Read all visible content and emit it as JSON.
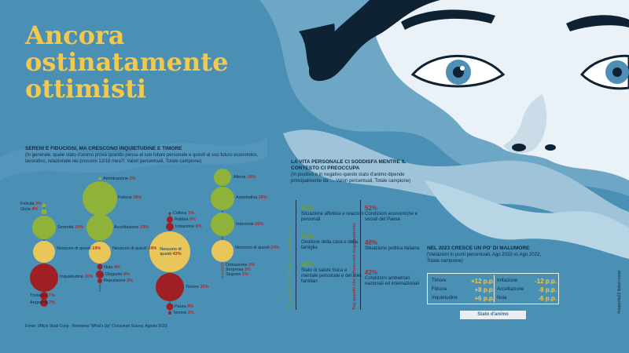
{
  "title": "Ancora ostinatamente ottimisti",
  "section1": {
    "heading": "SERENI E FIDUCIOSI, MA CRESCONO INQUIETUDINE E TIMORE",
    "subheading": "(In generale, quale stato d'animo prova quando pensa al suo futuro personale e quindi al suo futuro economico, lavorativo, relazionale nei prossimi 12/18 mesi?. Valori percentuali, Totale campione)",
    "bubbles": [
      {
        "label": "Felicità",
        "value": "3%"
      },
      {
        "label": "Gioia",
        "value": "4%"
      },
      {
        "label": "Serenità",
        "value": "20%"
      },
      {
        "label": "Nessuno di questi",
        "value": "19%"
      },
      {
        "label": "Inquietudine",
        "value": "30%"
      },
      {
        "label": "Tristezza",
        "value": "7%"
      },
      {
        "label": "Angoscia",
        "value": "7%"
      },
      {
        "label": "Ammirazione",
        "value": "2%"
      },
      {
        "label": "Fiducia",
        "value": "36%"
      },
      {
        "label": "Accettazione",
        "value": "23%"
      },
      {
        "label": "Nessuno di questi",
        "value": "24%"
      },
      {
        "label": "Noia",
        "value": "4%"
      },
      {
        "label": "Disgusto",
        "value": "8%"
      },
      {
        "label": "Repulsione",
        "value": "3%"
      },
      {
        "label": "Collera",
        "value": "1%"
      },
      {
        "label": "Rabbia",
        "value": "6%"
      },
      {
        "label": "Irritazione",
        "value": "8%"
      },
      {
        "label": "Nessuno di questi",
        "value": "43%"
      },
      {
        "label": "Timore",
        "value": "32%"
      },
      {
        "label": "Paura",
        "value": "8%"
      },
      {
        "label": "Terrore",
        "value": "2%"
      },
      {
        "label": "Allerta",
        "value": "16%"
      },
      {
        "label": "Aspettativa",
        "value": "28%"
      },
      {
        "label": "Interesse",
        "value": "26%"
      },
      {
        "label": "Nessuno di questi",
        "value": "24%"
      },
      {
        "label": "Distrazione",
        "value": "3%"
      },
      {
        "label": "Sorpresa",
        "value": "3%"
      },
      {
        "label": "Stupore",
        "value": "1%"
      }
    ],
    "source": "Fonte: Ufficio Studi Coop - Nomisma \"What's Up\" Consumer Survey, Agosto 2023"
  },
  "section2": {
    "heading": "LA VITA PERSONALE CI SODDISFA MENTRE IL CONTESTO CI PREOCCUPA",
    "subheading": "(In positivo o in negativo questo stato d'animo dipende principalmente da .... Valori percentuali, Totale campione)",
    "left_vertical_label": "Top aspetti che influiscono positivamente",
    "right_vertical_label": "Top aspetti che influiscono negativamente",
    "positive": [
      {
        "pct": "51%",
        "text": "Situazione affettiva e relazioni personali"
      },
      {
        "pct": "51%",
        "text": "Gestione della casa e della famiglia"
      },
      {
        "pct": "42%",
        "text": "Stato di salute fisica e mentale personale e dei miei familiari"
      }
    ],
    "negative": [
      {
        "pct": "52%",
        "text": "Condizioni economiche e sociali del Paese"
      },
      {
        "pct": "48%",
        "text": "Situazione politica italiana"
      },
      {
        "pct": "42%",
        "text": "Condizioni ambientali nazionali ed internazionali"
      }
    ]
  },
  "section3": {
    "heading": "NEL 2023 CRESCE UN PO' DI MALUMORE",
    "subheading": "(Variazioni in punti percentuali, Ago 2023 vs Ago 2022, Totale campione)",
    "left": [
      {
        "label": "Timore",
        "value": "+12 p.p."
      },
      {
        "label": "Fiducia",
        "value": "+8 p.p."
      },
      {
        "label": "Inquietudine",
        "value": "+6 p.p."
      }
    ],
    "right": [
      {
        "label": "Irritazione",
        "value": "-12 p.p."
      },
      {
        "label": "Accettazione",
        "value": "-9 p.p."
      },
      {
        "label": "Noia",
        "value": "-6 p.p."
      }
    ],
    "footer": "Stato d'animo"
  },
  "side_handle": "#rapporto23 italiani.coop",
  "colors": {
    "background": "#4a8fb4",
    "title": "#f2c94c",
    "green": "#8fb33a",
    "yellow": "#e9c65a",
    "red": "#9e1f24",
    "negative_pct": "#b3262a",
    "positive_pct": "#6f9f3a"
  }
}
